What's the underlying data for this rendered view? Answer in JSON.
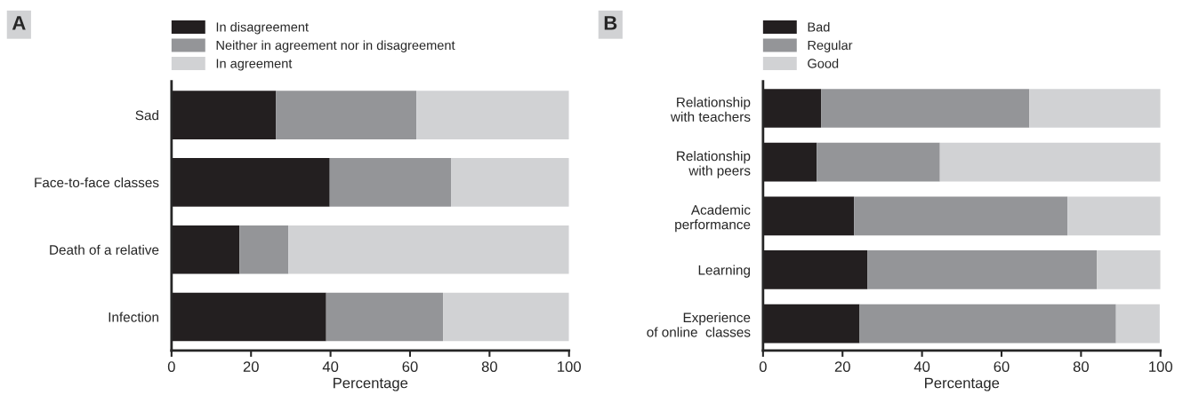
{
  "chart_data": [
    {
      "type": "bar",
      "orientation": "horizontal",
      "stacked": true,
      "title": "A",
      "xlabel": "Percentage",
      "categories": [
        "Sad",
        "Face-to-face classes",
        "Death of a relative",
        "Infection"
      ],
      "series": [
        {
          "name": "In disagreement",
          "color": "#231f20",
          "values": [
            26.3,
            39.8,
            17.1,
            38.9
          ]
        },
        {
          "name": "Neither in agreement nor in disagreement",
          "color": "#949598",
          "values": [
            35.3,
            30.5,
            12.3,
            29.4
          ]
        },
        {
          "name": "In agreement",
          "color": "#d1d2d4",
          "values": [
            38.4,
            29.7,
            70.6,
            31.7
          ]
        }
      ],
      "xlim": [
        0,
        100
      ],
      "xticks": [
        0,
        20,
        40,
        60,
        80,
        100
      ],
      "grid": false,
      "legend": "top left"
    },
    {
      "type": "bar",
      "orientation": "horizontal",
      "stacked": true,
      "title": "B",
      "xlabel": "Percentage",
      "categories": [
        "Relationship\nwith teachers",
        "Relationship\nwith peers",
        "Academic\nperformance",
        "Learning",
        "Experience\nof online  classes"
      ],
      "series": [
        {
          "name": "Bad",
          "color": "#231f20",
          "values": [
            14.6,
            13.5,
            22.9,
            26.3,
            24.3
          ]
        },
        {
          "name": "Regular",
          "color": "#949598",
          "values": [
            52.4,
            31.0,
            53.7,
            57.7,
            64.5
          ]
        },
        {
          "name": "Good",
          "color": "#d1d2d4",
          "values": [
            33.0,
            55.5,
            23.4,
            16.0,
            11.0
          ]
        }
      ],
      "xlim": [
        0,
        100
      ],
      "xticks": [
        0,
        20,
        40,
        60,
        80,
        100
      ],
      "grid": false,
      "legend": "top left"
    }
  ]
}
